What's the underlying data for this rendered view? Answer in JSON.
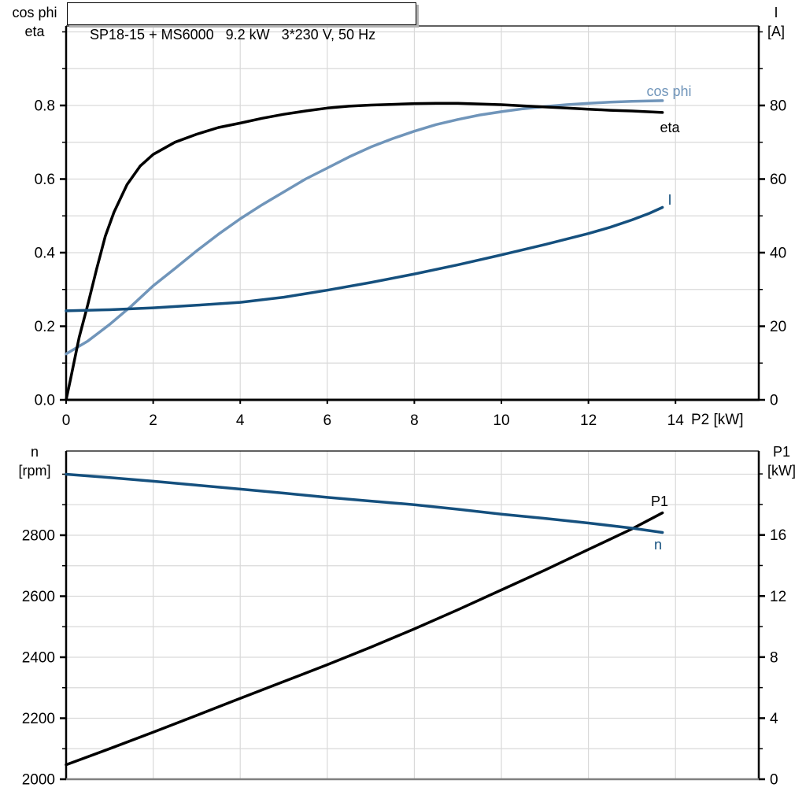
{
  "panel": {
    "background": "#ffffff",
    "grid_color": "#d9d9d9",
    "axis_color": "#000000",
    "bottom_frame_color": "#808080",
    "accent_dark_blue": "#15507e",
    "accent_light_blue": "#7095ba"
  },
  "title_box": {
    "text": "SP18-15 + MS6000   9.2 kW   3*230 V, 50 Hz"
  },
  "chart_data": [
    {
      "type": "line",
      "title": "SP18-15 + MS6000   9.2 kW   3*230 V, 50 Hz",
      "x_axis": {
        "label": "P2 [kW]",
        "min": 0,
        "max": 15.9,
        "ticks": [
          0,
          2,
          4,
          6,
          8,
          10,
          12,
          14
        ],
        "tick_labels": [
          "0",
          "2",
          "4",
          "6",
          "8",
          "10",
          "12",
          "14"
        ],
        "grid_step": 2
      },
      "left_axis": {
        "label_lines": [
          "cos phi",
          "eta"
        ],
        "min": 0,
        "max": 1.016,
        "ticks": [
          0,
          0.2,
          0.4,
          0.6,
          0.8
        ],
        "tick_labels": [
          "0.0",
          "0.2",
          "0.4",
          "0.6",
          "0.8"
        ],
        "grid_step": 0.1,
        "minor_step": 0.1
      },
      "right_axis": {
        "label_lines": [
          "I",
          "[A]"
        ],
        "min": 0,
        "max": 101.6,
        "ticks": [
          0,
          20,
          40,
          60,
          80
        ],
        "tick_labels": [
          "0",
          "20",
          "40",
          "60",
          "80"
        ],
        "grid_step": 10,
        "minor_step": 10
      },
      "series": [
        {
          "name": "cos phi",
          "label": "cos phi",
          "axis": "left",
          "color": "#7095ba",
          "points": [
            [
              0,
              0.125
            ],
            [
              0.5,
              0.16
            ],
            [
              1,
              0.205
            ],
            [
              1.5,
              0.255
            ],
            [
              2,
              0.31
            ],
            [
              2.5,
              0.357
            ],
            [
              3,
              0.405
            ],
            [
              3.5,
              0.45
            ],
            [
              4,
              0.492
            ],
            [
              4.5,
              0.53
            ],
            [
              5,
              0.565
            ],
            [
              5.5,
              0.6
            ],
            [
              6,
              0.63
            ],
            [
              6.5,
              0.66
            ],
            [
              7,
              0.687
            ],
            [
              7.5,
              0.71
            ],
            [
              8,
              0.73
            ],
            [
              8.5,
              0.748
            ],
            [
              9,
              0.762
            ],
            [
              9.5,
              0.774
            ],
            [
              10,
              0.783
            ],
            [
              10.5,
              0.791
            ],
            [
              11,
              0.797
            ],
            [
              11.5,
              0.802
            ],
            [
              12,
              0.806
            ],
            [
              12.5,
              0.809
            ],
            [
              13,
              0.811
            ],
            [
              13.7,
              0.813
            ]
          ]
        },
        {
          "name": "eta",
          "label": "eta",
          "axis": "left",
          "color": "#000000",
          "points": [
            [
              0,
              0
            ],
            [
              0.1,
              0.055
            ],
            [
              0.3,
              0.17
            ],
            [
              0.5,
              0.26
            ],
            [
              0.7,
              0.355
            ],
            [
              0.9,
              0.445
            ],
            [
              1.1,
              0.51
            ],
            [
              1.4,
              0.585
            ],
            [
              1.7,
              0.635
            ],
            [
              2,
              0.667
            ],
            [
              2.5,
              0.7
            ],
            [
              3,
              0.722
            ],
            [
              3.5,
              0.74
            ],
            [
              4,
              0.752
            ],
            [
              4.5,
              0.765
            ],
            [
              5,
              0.776
            ],
            [
              5.5,
              0.785
            ],
            [
              6,
              0.793
            ],
            [
              6.5,
              0.798
            ],
            [
              7,
              0.801
            ],
            [
              7.5,
              0.803
            ],
            [
              8,
              0.805
            ],
            [
              8.5,
              0.806
            ],
            [
              9,
              0.806
            ],
            [
              9.5,
              0.804
            ],
            [
              10,
              0.802
            ],
            [
              10.5,
              0.799
            ],
            [
              11,
              0.796
            ],
            [
              11.5,
              0.793
            ],
            [
              12,
              0.79
            ],
            [
              12.5,
              0.787
            ],
            [
              13,
              0.785
            ],
            [
              13.7,
              0.781
            ]
          ]
        },
        {
          "name": "I",
          "label": "I",
          "axis": "right",
          "color": "#15507e",
          "points": [
            [
              0,
              24.2
            ],
            [
              1,
              24.5
            ],
            [
              2,
              25.0
            ],
            [
              3,
              25.7
            ],
            [
              4,
              26.5
            ],
            [
              5,
              27.9
            ],
            [
              6,
              29.8
            ],
            [
              7,
              31.9
            ],
            [
              8,
              34.2
            ],
            [
              9,
              36.7
            ],
            [
              10,
              39.4
            ],
            [
              11,
              42.2
            ],
            [
              12,
              45.2
            ],
            [
              12.5,
              46.9
            ],
            [
              13,
              48.9
            ],
            [
              13.4,
              50.7
            ],
            [
              13.7,
              52.3
            ]
          ]
        }
      ]
    },
    {
      "type": "line",
      "title": "",
      "x_axis": {
        "label": "",
        "min": 0,
        "max": 15.9,
        "ticks": [],
        "tick_labels": [],
        "grid_step": 2
      },
      "left_axis": {
        "label_lines": [
          "n",
          "[rpm]"
        ],
        "min": 2000,
        "max": 3076,
        "ticks": [
          2000,
          2200,
          2400,
          2600,
          2800
        ],
        "tick_labels": [
          "2000",
          "2200",
          "2400",
          "2600",
          "2800"
        ],
        "grid_step": 100,
        "minor_step": 100
      },
      "right_axis": {
        "label_lines": [
          "P1",
          "[kW]"
        ],
        "min": 0,
        "max": 21.5,
        "ticks": [
          0,
          4,
          8,
          12,
          16
        ],
        "tick_labels": [
          "0",
          "4",
          "8",
          "12",
          "16"
        ],
        "grid_step": 2,
        "minor_step": 2
      },
      "series": [
        {
          "name": "P1",
          "label": "P1",
          "axis": "right",
          "color": "#000000",
          "points": [
            [
              0,
              0.95
            ],
            [
              1,
              2.0
            ],
            [
              2,
              3.08
            ],
            [
              3,
              4.18
            ],
            [
              4,
              5.3
            ],
            [
              5,
              6.4
            ],
            [
              6,
              7.5
            ],
            [
              7,
              8.65
            ],
            [
              8,
              9.85
            ],
            [
              9,
              11.1
            ],
            [
              10,
              12.4
            ],
            [
              11,
              13.7
            ],
            [
              12,
              15.05
            ],
            [
              13,
              16.4
            ],
            [
              13.7,
              17.45
            ]
          ]
        },
        {
          "name": "n",
          "label": "n",
          "axis": "left",
          "color": "#15507e",
          "points": [
            [
              0,
              3000
            ],
            [
              1,
              2989
            ],
            [
              2,
              2977
            ],
            [
              3,
              2964
            ],
            [
              4,
              2951
            ],
            [
              5,
              2938
            ],
            [
              6,
              2924
            ],
            [
              7,
              2912
            ],
            [
              8,
              2900
            ],
            [
              9,
              2885
            ],
            [
              10,
              2869
            ],
            [
              11,
              2855
            ],
            [
              12,
              2840
            ],
            [
              13,
              2823
            ],
            [
              13.7,
              2809
            ]
          ]
        }
      ]
    }
  ]
}
